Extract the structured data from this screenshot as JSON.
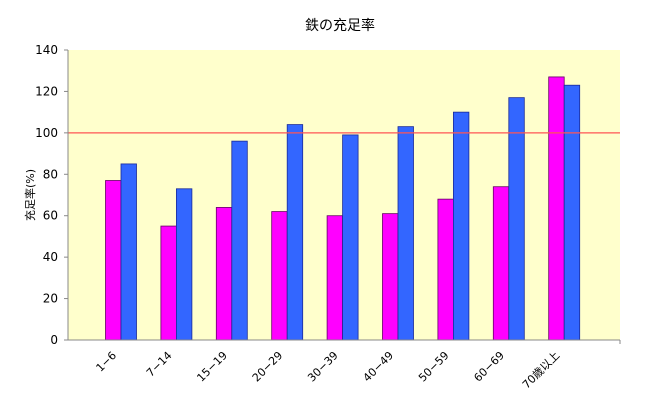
{
  "chart_data": {
    "type": "bar",
    "title": "鉄の充足率",
    "ylabel": "充足率(%)",
    "xlabel": "",
    "categories": [
      "1−6",
      "7−14",
      "15−19",
      "20−29",
      "30−39",
      "40−49",
      "50−59",
      "60−69",
      "70歳以上"
    ],
    "series": [
      {
        "values": [
          77,
          55,
          64,
          62,
          60,
          61,
          68,
          74,
          127
        ],
        "color": "#FF00FF"
      },
      {
        "values": [
          85,
          73,
          96,
          104,
          99,
          103,
          110,
          117,
          123
        ],
        "color": "#3366FF"
      }
    ],
    "ylim": [
      0,
      140
    ],
    "yticks": [
      0,
      20,
      40,
      60,
      80,
      100,
      120,
      140
    ],
    "reference_line": {
      "value": 100,
      "color": "#FF5555"
    },
    "plot_background": "#FFFFCC",
    "grid": false,
    "legend": "none"
  }
}
